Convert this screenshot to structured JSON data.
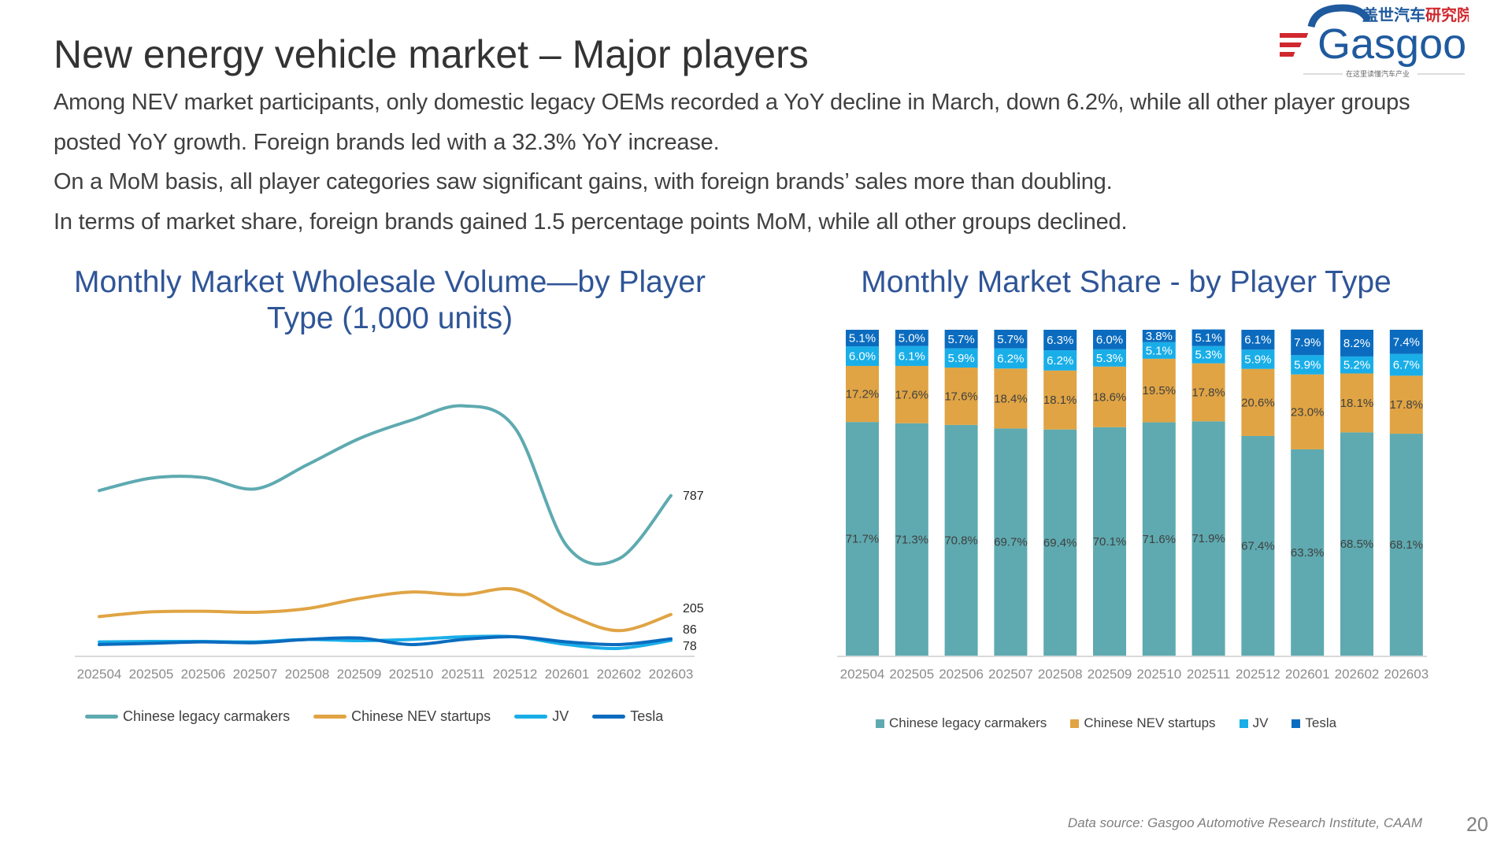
{
  "header": {
    "title": "New energy vehicle market – Major players",
    "body_lines": [
      "Among NEV market participants, only domestic legacy OEMs recorded a YoY decline in March, down 6.2%, while all other player groups",
      "posted YoY growth. Foreign brands led with a 32.3% YoY increase.",
      "On a MoM basis, all player categories saw significant gains, with foreign brands’   sales more than doubling.",
      "In terms of market share, foreign brands gained 1.5 percentage points MoM, while all other groups declined."
    ]
  },
  "logo": {
    "cn": "盖世汽车",
    "cn_red": "研究院",
    "en": "Gasgoo",
    "slogan": "在这里读懂汽车产业"
  },
  "watermark": {
    "cn": "盖世汽车",
    "en": "Gasgoo"
  },
  "colors": {
    "legacy": "#5eaab0",
    "startups": "#e0a444",
    "jv": "#19aee8",
    "tesla": "#0b6cbf",
    "title_blue": "#2f5597"
  },
  "chart_data": [
    {
      "type": "line",
      "title": "Monthly Market Wholesale Volume—by Player Type (1,000 units)",
      "categories": [
        "202504",
        "202505",
        "202506",
        "202507",
        "202508",
        "202509",
        "202510",
        "202511",
        "202512",
        "202601",
        "202602",
        "202603"
      ],
      "series": [
        {
          "name": "Chinese legacy carmakers",
          "color": "#5eaab0",
          "values": [
            812,
            873,
            876,
            820,
            938,
            1066,
            1156,
            1227,
            1118,
            540,
            478,
            787
          ],
          "end_label": "787"
        },
        {
          "name": "Chinese NEV startups",
          "color": "#e0a444",
          "values": [
            195,
            218,
            221,
            216,
            234,
            283,
            315,
            302,
            328,
            206,
            126,
            205
          ],
          "end_label": "205"
        },
        {
          "name": "JV",
          "color": "#19aee8",
          "values": [
            71,
            73,
            73,
            71,
            83,
            77,
            83,
            96,
            96,
            58,
            39,
            78
          ],
          "end_label": "78"
        },
        {
          "name": "Tesla",
          "color": "#0b6cbf",
          "values": [
            58,
            64,
            71,
            67,
            83,
            90,
            58,
            83,
            96,
            71,
            58,
            86
          ],
          "end_label": "86"
        }
      ],
      "ylim": [
        0,
        1300
      ],
      "grid": false,
      "legend": "bottom"
    },
    {
      "type": "bar",
      "stacked": true,
      "title": "Monthly Market Share - by Player Type",
      "categories": [
        "202504",
        "202505",
        "202506",
        "202507",
        "202508",
        "202509",
        "202510",
        "202511",
        "202512",
        "202601",
        "202602",
        "202603"
      ],
      "series": [
        {
          "name": "Chinese legacy carmakers",
          "color": "#5eaab0",
          "values": [
            71.7,
            71.3,
            70.8,
            69.7,
            69.4,
            70.1,
            71.6,
            71.9,
            67.4,
            63.3,
            68.5,
            68.1
          ]
        },
        {
          "name": "Chinese NEV startups",
          "color": "#e0a444",
          "values": [
            17.2,
            17.6,
            17.6,
            18.4,
            18.1,
            18.6,
            19.5,
            17.8,
            20.6,
            23.0,
            18.1,
            17.8
          ]
        },
        {
          "name": "JV",
          "color": "#19aee8",
          "values": [
            6.0,
            6.1,
            5.9,
            6.2,
            6.2,
            5.3,
            5.1,
            5.3,
            5.9,
            5.9,
            5.2,
            6.7
          ]
        },
        {
          "name": "Tesla",
          "color": "#0b6cbf",
          "values": [
            5.1,
            5.0,
            5.7,
            5.7,
            6.3,
            6.0,
            3.8,
            5.1,
            6.1,
            7.9,
            8.2,
            7.4
          ]
        }
      ],
      "ylim": [
        0,
        100
      ],
      "unit": "%",
      "grid": false,
      "legend": "bottom"
    }
  ],
  "footer": {
    "source": "Data source: Gasgoo Automotive Research Institute, CAAM",
    "page": "20"
  }
}
